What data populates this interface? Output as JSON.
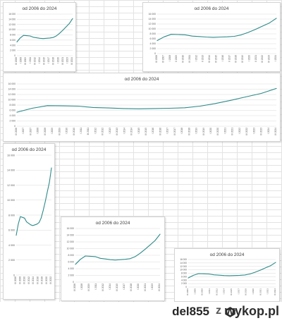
{
  "footer": {
    "author": "del855",
    "separator": "z",
    "logo": "wykop.pl"
  },
  "colors": {
    "line": "#2e8b89",
    "grid": "#d9d9d9",
    "text": "#595959"
  },
  "chart_data": [
    {
      "type": "line",
      "title": "od 2006 do 2024",
      "ylim": [
        0,
        16000
      ],
      "yticks": [
        "0",
        "2 000",
        "4 000",
        "6 000",
        "8 000",
        "10 000",
        "12 000",
        "14 000",
        "16 000"
      ],
      "xlabels": [
        "III 2006",
        "I 2008",
        "III 2009",
        "I 2011",
        "III 2012",
        "I 2014",
        "III 2015",
        "I 2017",
        "III 2018",
        "I 2020",
        "III 2021",
        "I 2023",
        "III 2024"
      ],
      "values": [
        5300,
        6800,
        7800,
        7700,
        7600,
        7100,
        6900,
        6700,
        6600,
        6700,
        6800,
        7000,
        7600,
        8600,
        9800,
        11100,
        12400,
        14300
      ]
    },
    {
      "type": "line",
      "title": "od 2006 do 2024",
      "ylim": [
        0,
        16000
      ],
      "yticks": [
        "0",
        "2 000",
        "4 000",
        "6 000",
        "8 000",
        "10 000",
        "12 000",
        "14 000",
        "16 000"
      ],
      "xlabels": [
        "III 2006",
        "IV 2007",
        "I 2008",
        "II 2009",
        "III 2010",
        "IV 2011",
        "I 2012",
        "II 2013",
        "III 2014",
        "IV 2015",
        "I 2016",
        "II 2017",
        "III 2018",
        "IV 2019",
        "I 2020",
        "II 2021",
        "III 2022",
        "IV 2023",
        "I 2024"
      ],
      "values": [
        5300,
        6800,
        7800,
        7700,
        7600,
        7100,
        6900,
        6700,
        6600,
        6700,
        6800,
        7000,
        7600,
        8600,
        9800,
        11100,
        12400,
        14300
      ]
    },
    {
      "type": "line",
      "title": "od 2006 do 2024",
      "ylim": [
        0,
        16000
      ],
      "yticks": [
        "0",
        "2 000",
        "4 000",
        "6 000",
        "8 000",
        "10 000",
        "12 000",
        "14 000",
        "16 000"
      ],
      "xlabels": [
        "III 2006",
        "I 2007",
        "III 2007",
        "I 2008",
        "III 2008",
        "I 2009",
        "III 2009",
        "I 2010",
        "III 2010",
        "I 2011",
        "III 2011",
        "I 2012",
        "III 2012",
        "I 2013",
        "III 2013",
        "I 2014",
        "III 2014",
        "I 2015",
        "III 2015",
        "I 2016",
        "III 2016",
        "I 2017",
        "III 2017",
        "I 2018",
        "III 2018",
        "I 2019",
        "III 2019",
        "I 2020",
        "III 2020",
        "I 2021",
        "III 2021",
        "I 2022",
        "III 2022",
        "I 2023",
        "III 2023",
        "I 2024",
        "III 2024"
      ],
      "values": [
        5300,
        6800,
        7800,
        7700,
        7600,
        7100,
        6900,
        6700,
        6600,
        6700,
        6800,
        7000,
        7600,
        8600,
        9800,
        11100,
        12400,
        14300
      ]
    },
    {
      "type": "line",
      "title": "od 2006 do 2024",
      "ylim": [
        0,
        16000
      ],
      "yticks": [
        "0",
        "2 000",
        "4 000",
        "6 000",
        "8 000",
        "10 000",
        "12 000",
        "14 000",
        "16 000"
      ],
      "xlabels": [
        "III 2006",
        "III 2008",
        "III 2010",
        "III 2012",
        "III 2014",
        "III 2016",
        "III 2018",
        "III 2020",
        "III 2022"
      ],
      "values": [
        5300,
        6800,
        7800,
        7700,
        7600,
        7100,
        6900,
        6700,
        6600,
        6700,
        6800,
        7000,
        7600,
        8600,
        9800,
        11100,
        12400,
        14300
      ]
    },
    {
      "type": "line",
      "title": "od 2006 do 2024",
      "ylim": [
        0,
        16000
      ],
      "yticks": [
        "0",
        "2 000",
        "4 000",
        "6 000",
        "8 000",
        "10 000",
        "12 000",
        "14 000",
        "16 000"
      ],
      "xlabels": [
        "III 2006",
        "I 2008",
        "III 2009",
        "I 2011",
        "III 2012",
        "I 2014",
        "III 2015",
        "I 2017",
        "III 2018",
        "I 2020",
        "III 2021",
        "I 2023",
        "III 2024"
      ],
      "values": [
        5300,
        6800,
        7800,
        7700,
        7600,
        7100,
        6900,
        6700,
        6600,
        6700,
        6800,
        7000,
        7600,
        8600,
        9800,
        11100,
        12400,
        14300
      ]
    },
    {
      "type": "line",
      "title": "od 2006 do 2024",
      "ylim": [
        0,
        16000
      ],
      "yticks": [
        "0",
        "2 000",
        "4 000",
        "6 000",
        "8 000",
        "10 000",
        "12 000",
        "14 000",
        "16 000"
      ],
      "xlabels": [
        "III 2006",
        "I 2008",
        "III 2009",
        "I 2011",
        "III 2012",
        "I 2014",
        "III 2015",
        "I 2017",
        "III 2018",
        "I 2020",
        "III 2021",
        "I 2023",
        "III 2024"
      ],
      "values": [
        5300,
        6800,
        7800,
        7700,
        7600,
        7100,
        6900,
        6700,
        6600,
        6700,
        6800,
        7000,
        7600,
        8600,
        9800,
        11100,
        12400,
        14300
      ]
    }
  ]
}
